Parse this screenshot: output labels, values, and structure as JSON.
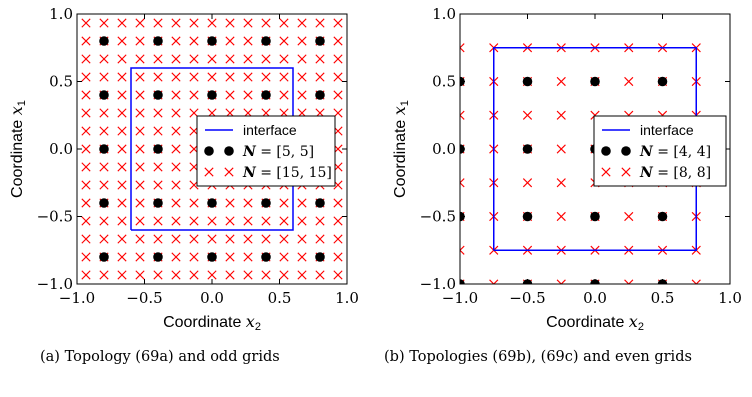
{
  "chart_data": [
    {
      "type": "scatter",
      "panel": "a",
      "xlabel_text": "Coordinate",
      "xlabel_sub": "x",
      "xlabel_index": "2",
      "ylabel_text": "Coordinate",
      "ylabel_sub": "x",
      "ylabel_index": "1",
      "xlim": [
        -1.0,
        1.0
      ],
      "ylim": [
        -1.0,
        1.0
      ],
      "xticks": [
        -1.0,
        -0.5,
        0.0,
        0.5,
        1.0
      ],
      "yticks": [
        -1.0,
        -0.5,
        0.0,
        0.5,
        1.0
      ],
      "xtick_labels": [
        "−1.0",
        "−0.5",
        "0.0",
        "0.5",
        "1.0"
      ],
      "ytick_labels": [
        "−1.0",
        "−0.5",
        "0.0",
        "0.5",
        "1.0"
      ],
      "interface": {
        "name": "interface",
        "x": [
          -0.6,
          0.6,
          0.6,
          -0.6,
          -0.6
        ],
        "y": [
          -0.6,
          -0.6,
          0.6,
          0.6,
          -0.6
        ],
        "color": "#0000ff"
      },
      "coarse_grid": {
        "name": "N = [5, 5]",
        "label_lhs": "N",
        "label_rhs": "= [5, 5]",
        "coords": [
          -0.8,
          -0.4,
          0.0,
          0.4,
          0.8
        ],
        "color": "#000000"
      },
      "fine_grid": {
        "name": "N = [15, 15]",
        "label_lhs": "N",
        "label_rhs": "= [15, 15]",
        "coords": [
          -0.9333,
          -0.8,
          -0.6667,
          -0.5333,
          -0.4,
          -0.2667,
          -0.1333,
          0.0,
          0.1333,
          0.2667,
          0.4,
          0.5333,
          0.6667,
          0.8,
          0.9333
        ],
        "color": "#ff0000"
      },
      "legend_position": "center-right",
      "grid": false
    },
    {
      "type": "scatter",
      "panel": "b",
      "xlabel_text": "Coordinate",
      "xlabel_sub": "x",
      "xlabel_index": "2",
      "ylabel_text": "Coordinate",
      "ylabel_sub": "x",
      "ylabel_index": "1",
      "xlim": [
        -1.0,
        1.0
      ],
      "ylim": [
        -1.0,
        1.0
      ],
      "xticks": [
        -1.0,
        -0.5,
        0.0,
        0.5,
        1.0
      ],
      "yticks": [
        -1.0,
        -0.5,
        0.0,
        0.5,
        1.0
      ],
      "xtick_labels": [
        "−1.0",
        "−0.5",
        "0.0",
        "0.5",
        "1.0"
      ],
      "ytick_labels": [
        "−1.0",
        "−0.5",
        "0.0",
        "0.5",
        "1.0"
      ],
      "interface": {
        "name": "interface",
        "x": [
          -0.75,
          0.75,
          0.75,
          -0.75,
          -0.75
        ],
        "y": [
          -0.75,
          -0.75,
          0.75,
          0.75,
          -0.75
        ],
        "color": "#0000ff"
      },
      "coarse_grid": {
        "name": "N = [4, 4]",
        "label_lhs": "N",
        "label_rhs": "= [4, 4]",
        "coords": [
          -1.0,
          -0.5,
          0.0,
          0.5
        ],
        "color": "#000000"
      },
      "fine_grid": {
        "name": "N = [8, 8]",
        "label_lhs": "N",
        "label_rhs": "= [8, 8]",
        "coords": [
          -1.0,
          -0.75,
          -0.5,
          -0.25,
          0.0,
          0.25,
          0.5,
          0.75
        ],
        "color": "#ff0000"
      },
      "legend_position": "center-right",
      "grid": false
    }
  ],
  "captions": {
    "a": "(a) Topology (69a) and odd grids",
    "b": "(b) Topologies (69b), (69c) and even grids"
  }
}
